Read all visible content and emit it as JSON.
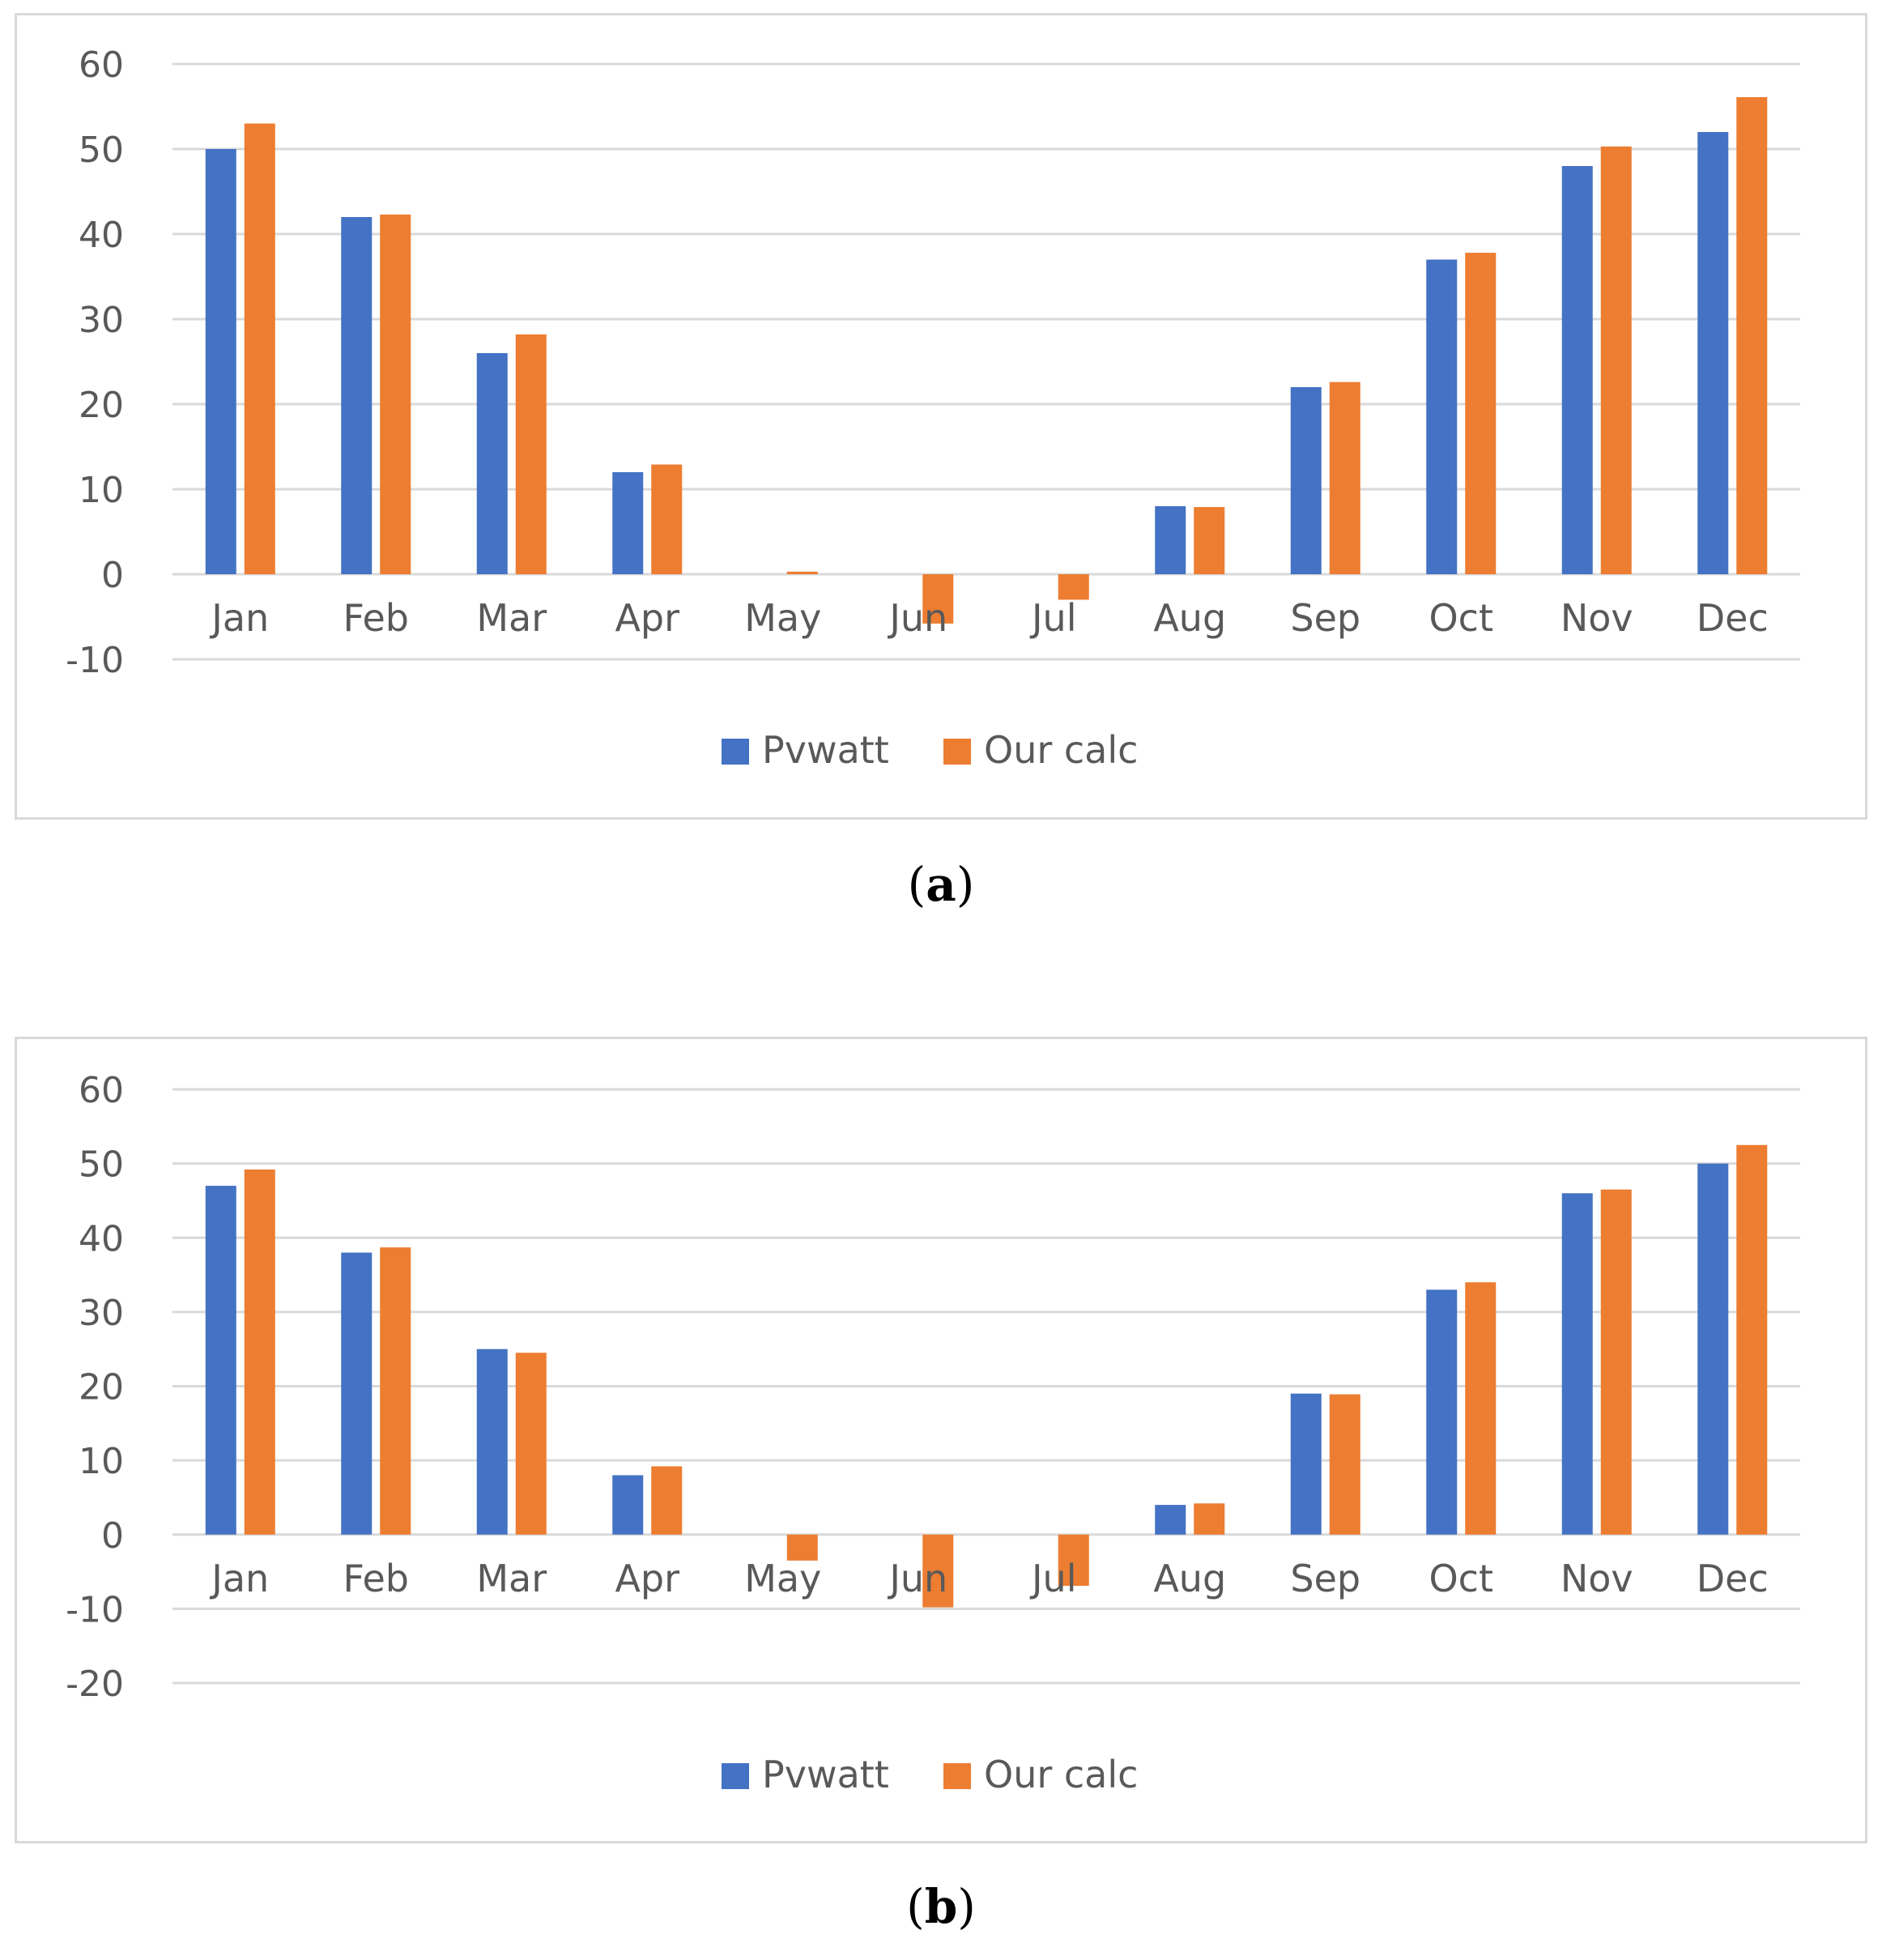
{
  "chart_data": [
    {
      "type": "bar",
      "panel": "a",
      "categories": [
        "Jan",
        "Feb",
        "Mar",
        "Apr",
        "May",
        "Jun",
        "Jul",
        "Aug",
        "Sep",
        "Oct",
        "Nov",
        "Dec"
      ],
      "series": [
        {
          "name": "Pvwatt",
          "color": "#4472c4",
          "values": [
            50,
            42,
            26,
            12,
            0,
            0,
            0,
            8,
            22,
            37,
            48,
            52
          ]
        },
        {
          "name": "Our calc",
          "color": "#ed7d31",
          "values": [
            53,
            42.3,
            28.2,
            12.9,
            0.3,
            -5.8,
            -3,
            7.9,
            22.6,
            37.8,
            50.3,
            56.1
          ]
        }
      ],
      "ylim": [
        -10,
        60
      ],
      "yticks": [
        "60",
        "50",
        "40",
        "30",
        "20",
        "10",
        "0",
        "-10"
      ],
      "grid": true,
      "legend": "bottom",
      "title": "",
      "xlabel": "",
      "ylabel": ""
    },
    {
      "type": "bar",
      "panel": "b",
      "categories": [
        "Jan",
        "Feb",
        "Mar",
        "Apr",
        "May",
        "Jun",
        "Jul",
        "Aug",
        "Sep",
        "Oct",
        "Nov",
        "Dec"
      ],
      "series": [
        {
          "name": "Pvwatt",
          "color": "#4472c4",
          "values": [
            47,
            38,
            25,
            8,
            0,
            0,
            0,
            4,
            19,
            33,
            46,
            50
          ]
        },
        {
          "name": "Our calc",
          "color": "#ed7d31",
          "values": [
            49.2,
            38.7,
            24.5,
            9.2,
            -3.5,
            -9.8,
            -6.9,
            4.2,
            18.9,
            34,
            46.5,
            52.5
          ]
        }
      ],
      "ylim": [
        -20,
        60
      ],
      "yticks": [
        "60",
        "50",
        "40",
        "30",
        "20",
        "10",
        "0",
        "-10",
        "-20"
      ],
      "grid": true,
      "legend": "bottom",
      "title": "",
      "xlabel": "",
      "ylabel": ""
    }
  ],
  "captions": {
    "a": "a",
    "b": "b"
  }
}
